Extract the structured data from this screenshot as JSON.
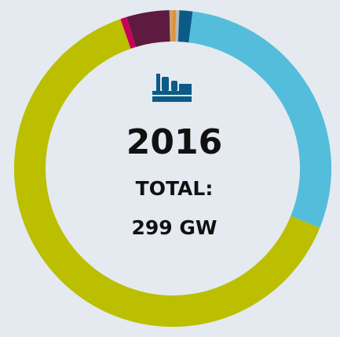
{
  "chart_data": {
    "type": "donut",
    "title": "2016",
    "total_label": "TOTAL:",
    "total_value": "299 GW",
    "categories": [
      null,
      null,
      null,
      null,
      null,
      null,
      null,
      null
    ],
    "values": [
      1,
      1,
      4,
      87,
      190,
      2,
      13,
      1
    ],
    "colors": [
      "#e8902a",
      "#b9b9b9",
      "#0b5b86",
      "#54bddb",
      "#bcbe00",
      "#c8005a",
      "#5e1a3f",
      "#c7a36a"
    ]
  }
}
